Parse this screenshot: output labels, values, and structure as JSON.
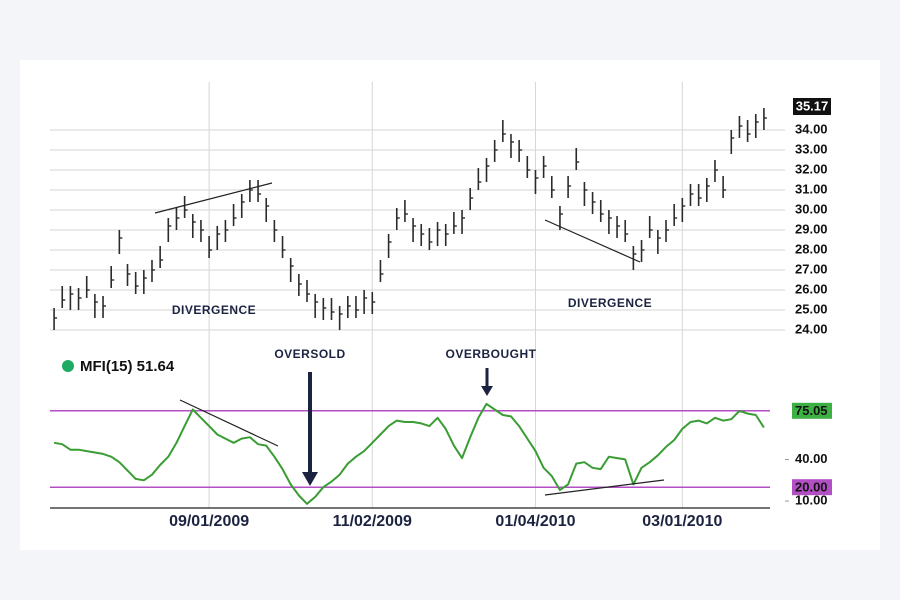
{
  "chart_data": [
    {
      "type": "ohlc",
      "categories": [
        null,
        null,
        null,
        null,
        null,
        null,
        null,
        null,
        null,
        null,
        null,
        null,
        null,
        null,
        null,
        null,
        null,
        null,
        null,
        "09/01/2009",
        null,
        null,
        null,
        null,
        null,
        null,
        null,
        null,
        null,
        null,
        null,
        null,
        null,
        null,
        null,
        null,
        null,
        null,
        null,
        "11/02/2009",
        null,
        null,
        null,
        null,
        null,
        null,
        null,
        null,
        null,
        null,
        null,
        null,
        null,
        null,
        null,
        null,
        null,
        null,
        null,
        "01/04/2010",
        null,
        null,
        null,
        null,
        null,
        null,
        null,
        null,
        null,
        null,
        null,
        null,
        null,
        null,
        null,
        null,
        null,
        "03/01/2010",
        null,
        null,
        null,
        null,
        null,
        null,
        null,
        null,
        null,
        null
      ],
      "high": [
        25.1,
        26.2,
        26.2,
        26.1,
        26.7,
        25.8,
        25.7,
        27.2,
        29.0,
        27.3,
        26.9,
        27.0,
        27.5,
        28.2,
        29.6,
        30.1,
        30.7,
        29.8,
        29.5,
        28.7,
        29.2,
        29.5,
        30.3,
        30.8,
        31.5,
        31.5,
        30.6,
        29.5,
        28.7,
        27.6,
        26.8,
        26.5,
        25.8,
        25.6,
        25.6,
        25.2,
        25.7,
        25.7,
        26.0,
        25.9,
        27.5,
        28.8,
        30.1,
        30.5,
        29.6,
        29.3,
        29.1,
        29.4,
        29.3,
        29.9,
        30.0,
        31.1,
        32.1,
        32.6,
        33.5,
        34.5,
        33.8,
        33.5,
        32.7,
        32.0,
        32.7,
        31.7,
        30.2,
        31.7,
        33.1,
        31.4,
        30.9,
        30.5,
        30.0,
        29.7,
        29.5,
        28.2,
        28.5,
        29.7,
        29.0,
        29.5,
        30.3,
        30.6,
        31.3,
        31.3,
        31.6,
        32.5,
        31.7,
        34.0,
        34.7,
        34.5,
        34.8,
        35.1
      ],
      "low": [
        24.0,
        25.1,
        25.0,
        25.0,
        25.6,
        24.6,
        24.6,
        26.1,
        27.8,
        26.2,
        25.8,
        25.8,
        26.4,
        27.1,
        28.4,
        29.0,
        29.6,
        28.6,
        28.4,
        27.6,
        28.0,
        28.4,
        29.2,
        29.6,
        30.4,
        30.4,
        29.4,
        28.4,
        27.6,
        26.4,
        25.7,
        25.4,
        24.6,
        24.5,
        24.5,
        24.0,
        24.6,
        24.6,
        24.8,
        24.8,
        26.4,
        27.6,
        29.0,
        29.4,
        28.4,
        28.2,
        28.0,
        28.2,
        28.2,
        28.8,
        28.8,
        30.0,
        31.0,
        31.4,
        32.4,
        33.4,
        32.6,
        32.4,
        31.6,
        30.8,
        31.6,
        30.6,
        29.0,
        30.6,
        32.0,
        30.2,
        29.8,
        29.4,
        28.8,
        28.6,
        28.4,
        27.0,
        27.4,
        28.6,
        27.8,
        28.4,
        29.2,
        29.4,
        30.2,
        30.2,
        30.4,
        31.4,
        30.6,
        32.8,
        33.6,
        33.4,
        33.6,
        34.0
      ],
      "close": [
        24.6,
        25.5,
        25.8,
        25.6,
        26.0,
        25.4,
        25.2,
        26.5,
        28.6,
        26.8,
        26.2,
        26.6,
        27.0,
        27.5,
        29.2,
        29.6,
        30.0,
        29.4,
        29.0,
        28.0,
        28.8,
        29.0,
        29.6,
        30.4,
        31.0,
        30.8,
        30.2,
        29.0,
        28.0,
        27.2,
        26.3,
        25.8,
        25.4,
        25.1,
        24.9,
        24.8,
        25.2,
        25.0,
        25.6,
        25.4,
        26.8,
        28.4,
        29.6,
        29.8,
        29.2,
        28.8,
        28.4,
        29.0,
        28.8,
        29.2,
        29.6,
        30.6,
        31.4,
        32.2,
        33.0,
        33.8,
        33.4,
        33.0,
        32.0,
        31.6,
        32.2,
        31.0,
        29.8,
        31.2,
        32.4,
        31.0,
        30.4,
        29.8,
        29.6,
        29.2,
        28.8,
        27.8,
        28.0,
        29.0,
        28.6,
        29.0,
        29.6,
        30.2,
        30.8,
        30.6,
        31.2,
        32.0,
        31.0,
        33.6,
        34.2,
        33.8,
        34.4,
        34.6
      ],
      "color": "#2b2b2b",
      "ylim": [
        23.5,
        35.5
      ],
      "yticks": [
        {
          "value": 24,
          "label": "24.00"
        },
        {
          "value": 25,
          "label": "25.00"
        },
        {
          "value": 26,
          "label": "26.00"
        },
        {
          "value": 27,
          "label": "27.00"
        },
        {
          "value": 28,
          "label": "28.00"
        },
        {
          "value": 29,
          "label": "29.00"
        },
        {
          "value": 30,
          "label": "30.00"
        },
        {
          "value": 31,
          "label": "31.00"
        },
        {
          "value": 32,
          "label": "32.00"
        },
        {
          "value": 33,
          "label": "33.00"
        },
        {
          "value": 34,
          "label": "34.00"
        }
      ],
      "current_value": 35.17,
      "grid": true,
      "annotations": [
        "DIVERGENCE",
        "DIVERGENCE",
        "OVERSOLD",
        "OVERBOUGHT"
      ]
    },
    {
      "type": "line",
      "series": [
        {
          "name": "MFI(15)",
          "color": "#3a9d34",
          "values": [
            52,
            51,
            47,
            47,
            46,
            45,
            44,
            42,
            38,
            32,
            26,
            25,
            29,
            36,
            42,
            52,
            64,
            76,
            70,
            64,
            58,
            55,
            52,
            55,
            56,
            51,
            50,
            42,
            33,
            22,
            14,
            8,
            13,
            20,
            24,
            29,
            37,
            42,
            46,
            52,
            58,
            64,
            68,
            67,
            67,
            66,
            64,
            70,
            62,
            50,
            41,
            56,
            70,
            80,
            76,
            72,
            71,
            64,
            55,
            46,
            34,
            28,
            18,
            22,
            37,
            38,
            34,
            33,
            42,
            41,
            40,
            22,
            34,
            38,
            43,
            49,
            54,
            62,
            67,
            68,
            66,
            70,
            68,
            69,
            75,
            73,
            72,
            63
          ]
        }
      ],
      "current_value": 51.64,
      "ylim": [
        5,
        85
      ],
      "yticks": [
        {
          "value": 40,
          "label": "40.00"
        },
        {
          "value": 10,
          "label": "10.00"
        }
      ],
      "levels": [
        {
          "value": 75.05,
          "label": "75.05",
          "color": "#b24fc4",
          "label_background": "#3cb043"
        },
        {
          "value": 20,
          "label": "20.00",
          "color": "#b24fc4",
          "label_background": "#b24fc4"
        }
      ]
    }
  ]
}
